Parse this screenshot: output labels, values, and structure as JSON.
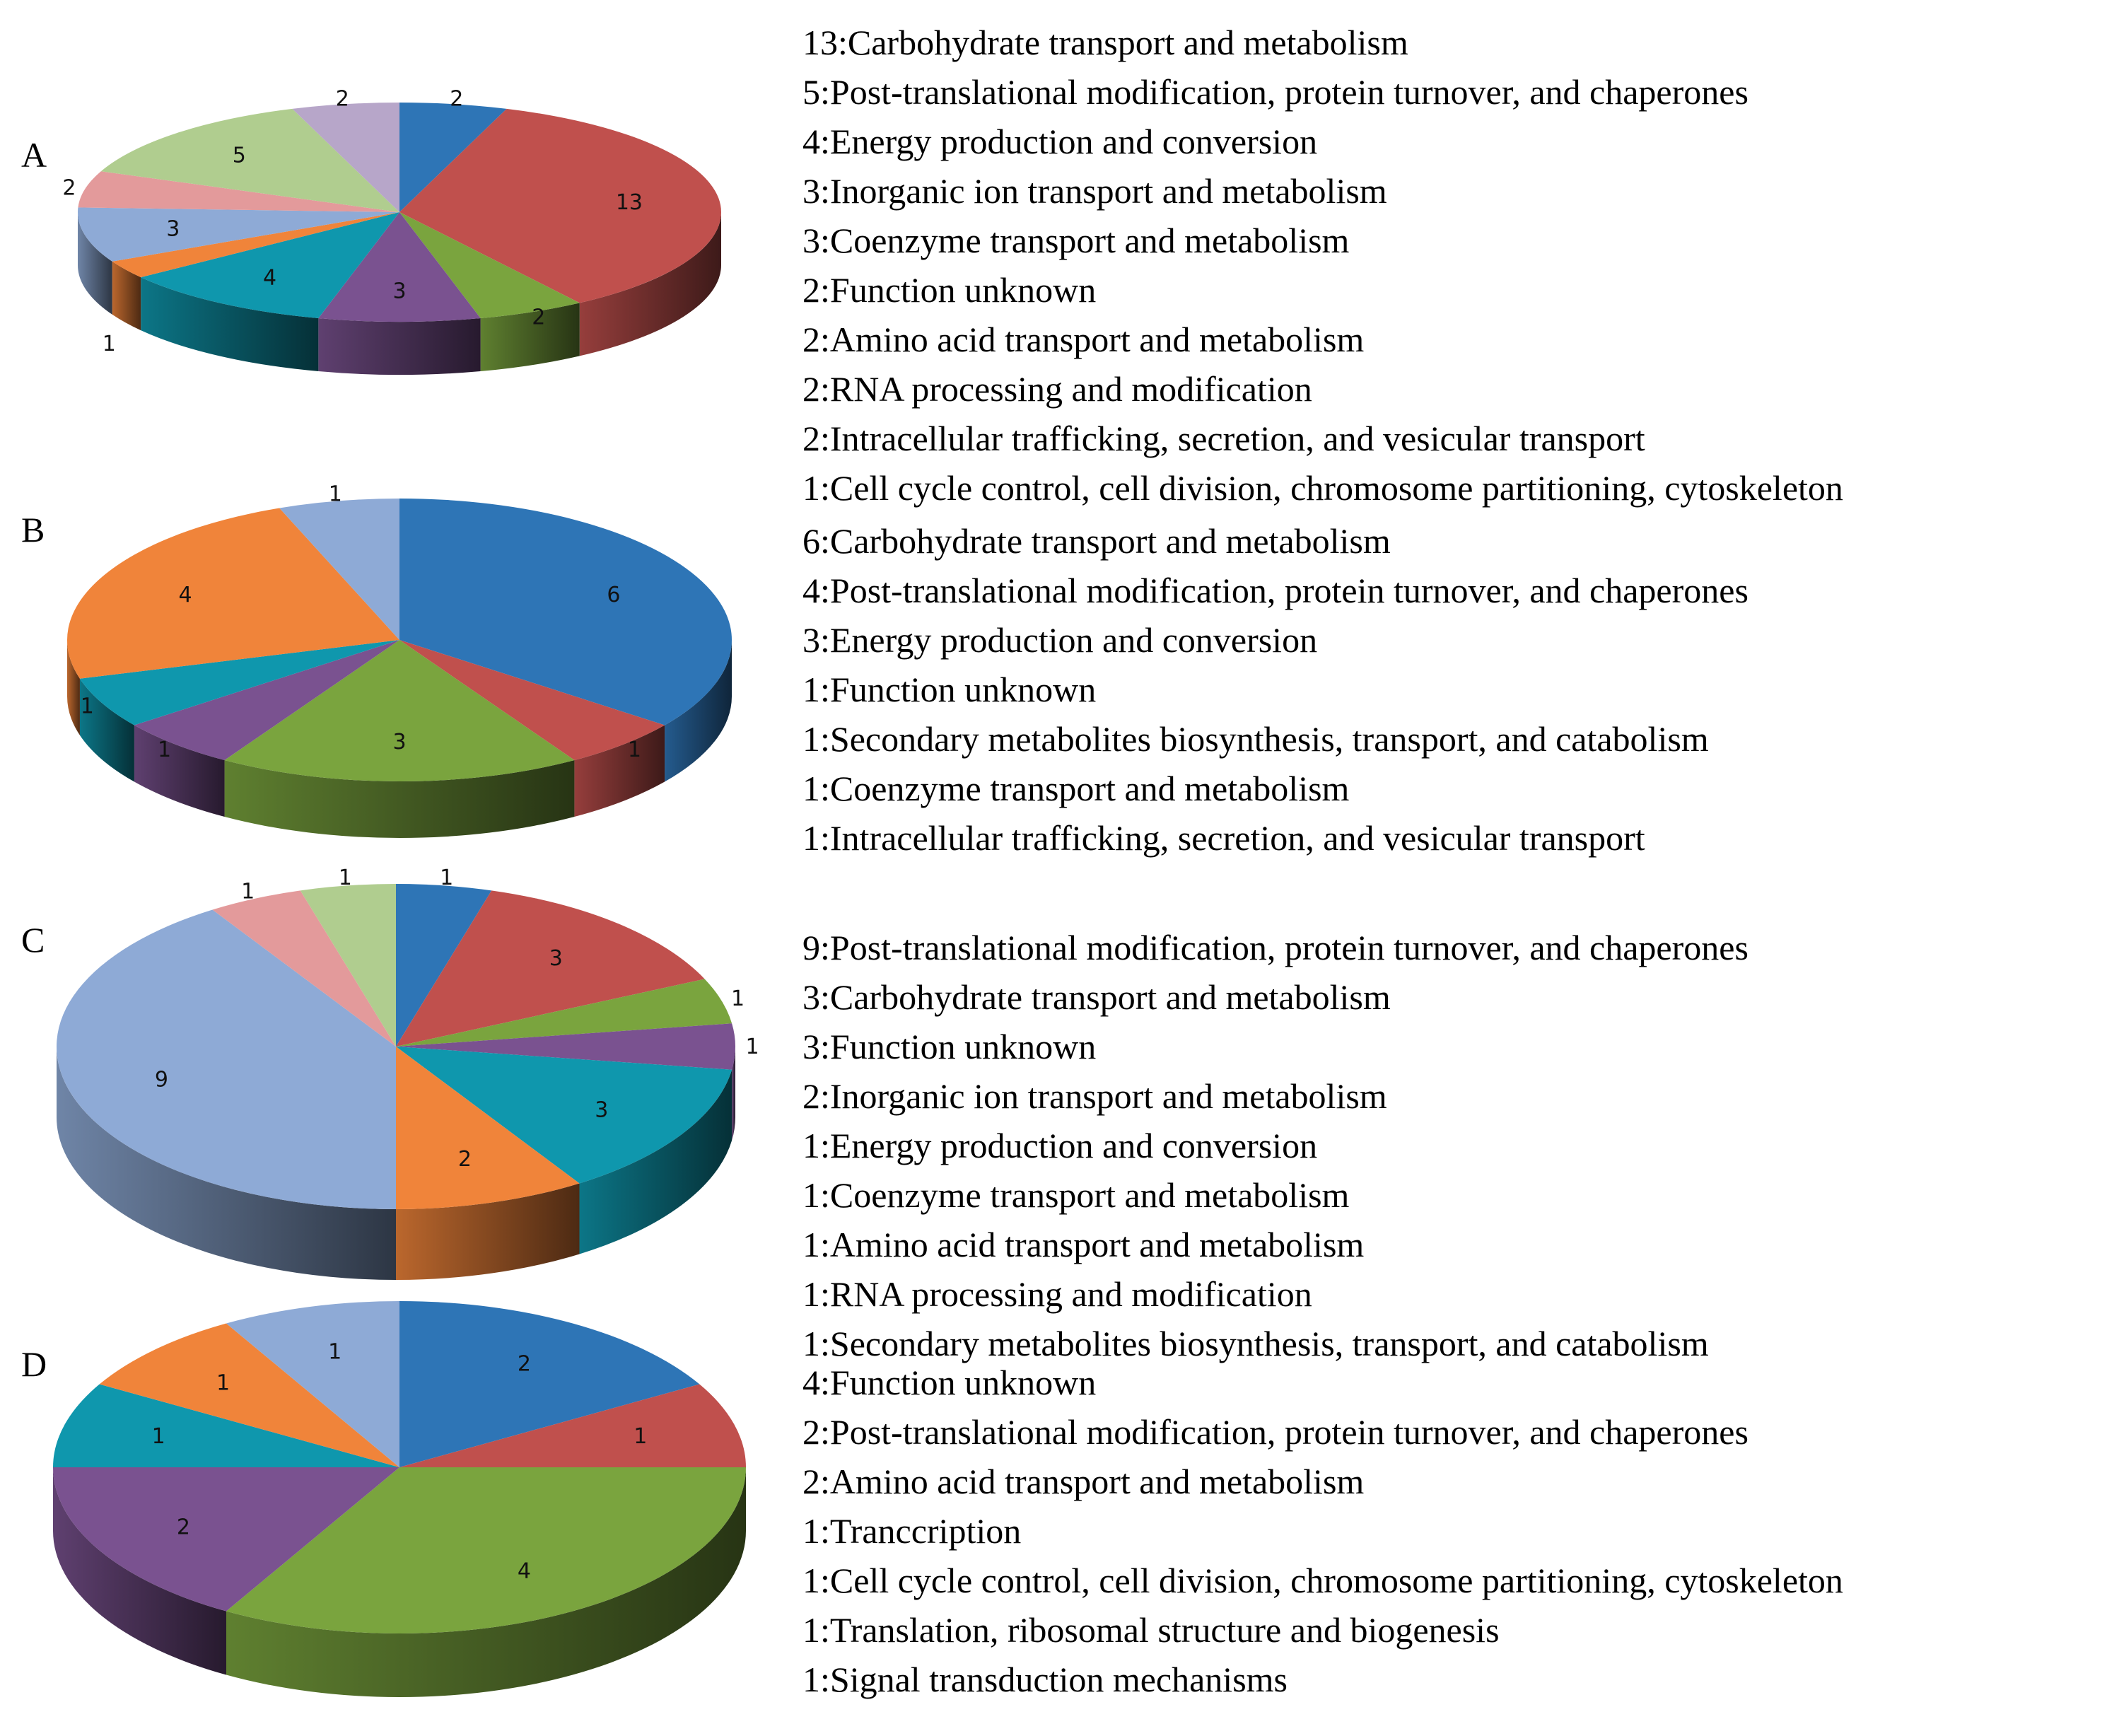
{
  "chart_data": [
    {
      "type": "pie",
      "panel_label": "A",
      "series": [
        {
          "value": 2,
          "color": "#2e75b6"
        },
        {
          "value": 13,
          "color": "#c0504d"
        },
        {
          "value": 2,
          "color": "#7aa43e"
        },
        {
          "value": 3,
          "color": "#7a5290"
        },
        {
          "value": 4,
          "color": "#0f97ad"
        },
        {
          "value": 1,
          "color": "#f0843a"
        },
        {
          "value": 3,
          "color": "#8eaad6"
        },
        {
          "value": 2,
          "color": "#e39a9b"
        },
        {
          "value": 5,
          "color": "#b0cd8f"
        },
        {
          "value": 2,
          "color": "#b7a6c9"
        }
      ],
      "legend": [
        "13:Carbohydrate transport and metabolism",
        "5:Post-translational modification, protein turnover, and chaperones",
        "4:Energy production and conversion",
        "3:Inorganic ion transport and metabolism",
        "3:Coenzyme transport and metabolism",
        "2:Function unknown",
        "2:Amino acid transport and metabolism",
        "2:RNA processing and modification",
        "2:Intracellular trafficking, secretion, and vesicular transport",
        "1:Cell cycle control, cell division, chromosome partitioning, cytoskeleton"
      ]
    },
    {
      "type": "pie",
      "panel_label": "B",
      "series": [
        {
          "value": 6,
          "color": "#2e75b6"
        },
        {
          "value": 1,
          "color": "#c0504d"
        },
        {
          "value": 3,
          "color": "#7aa43e"
        },
        {
          "value": 1,
          "color": "#7a5290"
        },
        {
          "value": 1,
          "color": "#0f97ad"
        },
        {
          "value": 4,
          "color": "#f0843a"
        },
        {
          "value": 1,
          "color": "#8eaad6"
        }
      ],
      "legend": [
        "6:Carbohydrate transport and metabolism",
        "4:Post-translational modification, protein turnover, and chaperones",
        "3:Energy production and conversion",
        "1:Function unknown",
        "1:Secondary metabolites biosynthesis, transport, and catabolism",
        "1:Coenzyme transport and metabolism",
        "1:Intracellular trafficking, secretion, and vesicular transport"
      ]
    },
    {
      "type": "pie",
      "panel_label": "C",
      "series": [
        {
          "value": 1,
          "color": "#2e75b6"
        },
        {
          "value": 3,
          "color": "#c0504d"
        },
        {
          "value": 1,
          "color": "#7aa43e"
        },
        {
          "value": 1,
          "color": "#7a5290"
        },
        {
          "value": 3,
          "color": "#0f97ad"
        },
        {
          "value": 2,
          "color": "#f0843a"
        },
        {
          "value": 9,
          "color": "#8eaad6"
        },
        {
          "value": 1,
          "color": "#e39a9b"
        },
        {
          "value": 1,
          "color": "#b0cd8f"
        }
      ],
      "legend": [
        "9:Post-translational modification, protein turnover, and chaperones",
        "3:Carbohydrate transport and metabolism",
        "3:Function unknown",
        "2:Inorganic ion transport and metabolism",
        "1:Energy production and conversion",
        "1:Coenzyme transport and metabolism",
        "1:Amino acid transport and metabolism",
        "1:RNA processing and modification",
        "1:Secondary metabolites biosynthesis, transport, and catabolism"
      ]
    },
    {
      "type": "pie",
      "panel_label": "D",
      "series": [
        {
          "value": 2,
          "color": "#2e75b6"
        },
        {
          "value": 1,
          "color": "#c0504d"
        },
        {
          "value": 4,
          "color": "#7aa43e"
        },
        {
          "value": 2,
          "color": "#7a5290"
        },
        {
          "value": 1,
          "color": "#0f97ad"
        },
        {
          "value": 1,
          "color": "#f0843a"
        },
        {
          "value": 1,
          "color": "#8eaad6"
        }
      ],
      "legend": [
        "4:Function unknown",
        "2:Post-translational modification, protein turnover, and chaperones",
        "2:Amino acid transport and metabolism",
        "1:Tranccription",
        "1:Cell cycle control, cell division, chromosome partitioning, cytoskeleton",
        "1:Translation, ribosomal structure and biogenesis",
        "1:Signal transduction mechanisms"
      ]
    }
  ]
}
